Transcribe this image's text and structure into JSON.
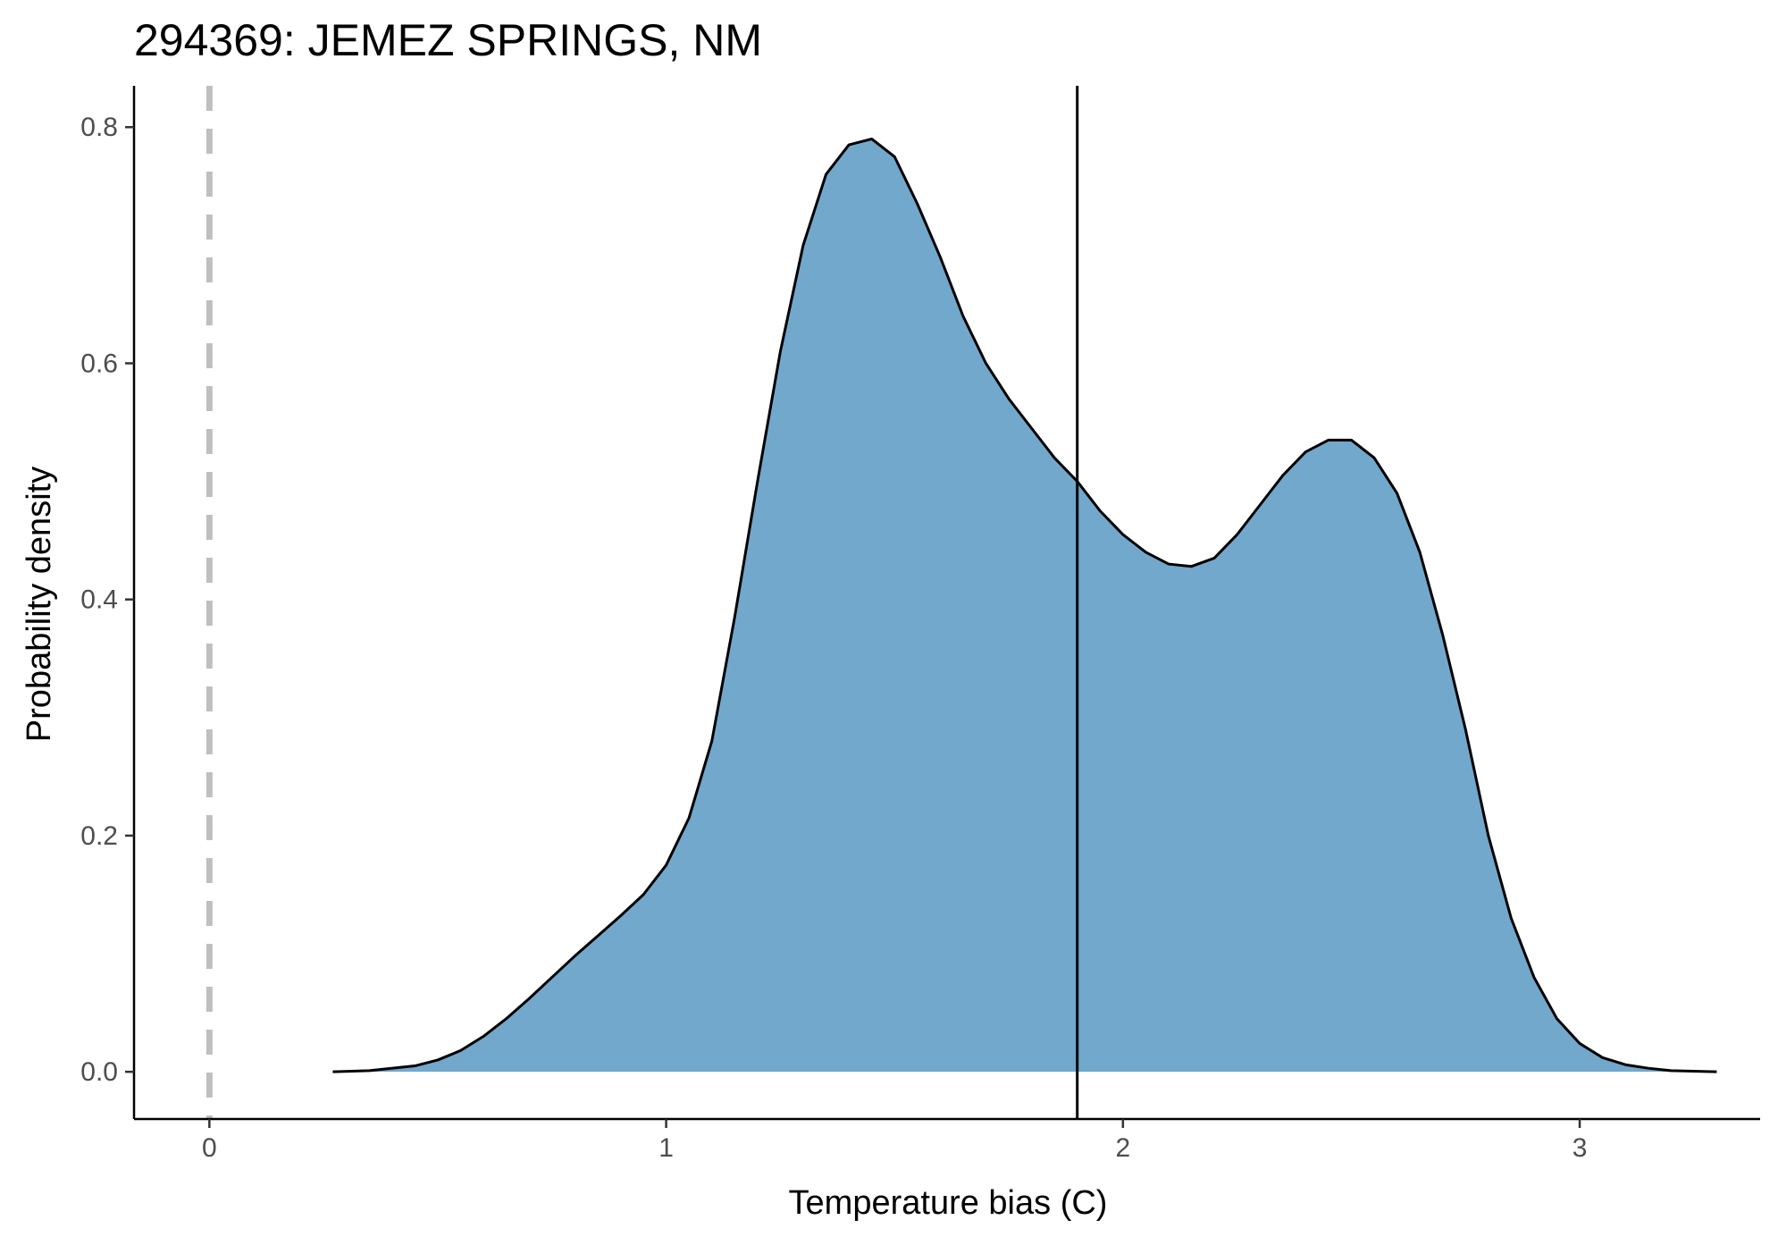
{
  "chart_data": {
    "type": "area",
    "title": "294369: JEMEZ SPRINGS, NM",
    "xlabel": "Temperature bias (C)",
    "ylabel": "Probability density",
    "xlim": [
      -0.165,
      3.395
    ],
    "ylim": [
      -0.04,
      0.835
    ],
    "x_ticks": [
      0,
      1,
      2,
      3
    ],
    "x_tick_labels": [
      "0",
      "1",
      "2",
      "3"
    ],
    "y_ticks": [
      0.0,
      0.2,
      0.4,
      0.6,
      0.8
    ],
    "y_tick_labels": [
      "0.0",
      "0.2",
      "0.4",
      "0.6",
      "0.8"
    ],
    "grid": false,
    "legend": "none",
    "fill_color": "#72a8cc",
    "line_color": "#000000",
    "reference_line_color": "#bfbfbf",
    "density": {
      "x": [
        0.27,
        0.35,
        0.45,
        0.5,
        0.55,
        0.6,
        0.65,
        0.7,
        0.75,
        0.8,
        0.85,
        0.9,
        0.95,
        1.0,
        1.05,
        1.1,
        1.15,
        1.2,
        1.25,
        1.3,
        1.35,
        1.4,
        1.45,
        1.5,
        1.55,
        1.6,
        1.65,
        1.7,
        1.75,
        1.8,
        1.85,
        1.9,
        1.95,
        2.0,
        2.05,
        2.1,
        2.15,
        2.2,
        2.25,
        2.3,
        2.35,
        2.4,
        2.45,
        2.5,
        2.55,
        2.6,
        2.65,
        2.7,
        2.75,
        2.8,
        2.85,
        2.9,
        2.95,
        3.0,
        3.05,
        3.1,
        3.15,
        3.2,
        3.25,
        3.3
      ],
      "y": [
        0.0,
        0.001,
        0.005,
        0.01,
        0.018,
        0.03,
        0.045,
        0.062,
        0.08,
        0.098,
        0.115,
        0.132,
        0.15,
        0.175,
        0.215,
        0.28,
        0.385,
        0.5,
        0.61,
        0.7,
        0.76,
        0.785,
        0.79,
        0.775,
        0.735,
        0.69,
        0.64,
        0.6,
        0.57,
        0.545,
        0.52,
        0.5,
        0.475,
        0.455,
        0.44,
        0.43,
        0.428,
        0.435,
        0.455,
        0.48,
        0.505,
        0.525,
        0.535,
        0.535,
        0.52,
        0.49,
        0.44,
        0.37,
        0.29,
        0.2,
        0.13,
        0.08,
        0.045,
        0.024,
        0.012,
        0.006,
        0.003,
        0.001,
        0.0005,
        0.0
      ]
    },
    "reference_lines": [
      {
        "x": 0,
        "style": "dashed"
      },
      {
        "x": 1.9,
        "style": "solid"
      }
    ]
  }
}
